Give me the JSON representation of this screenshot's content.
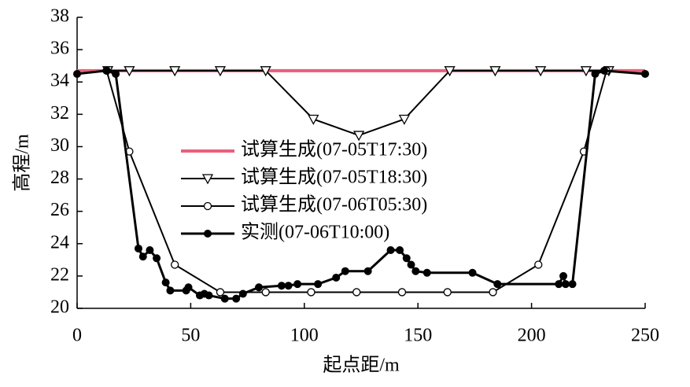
{
  "chart_data": {
    "type": "line",
    "xlabel": "起点距/m",
    "ylabel": "高程/m",
    "xlim": [
      0,
      250
    ],
    "xticks": [
      0,
      50,
      100,
      150,
      200,
      250
    ],
    "ylim": [
      20,
      38
    ],
    "yticks": [
      20,
      22,
      24,
      26,
      28,
      30,
      32,
      34,
      36,
      38
    ],
    "legend": "center",
    "series": [
      {
        "name": "试算生成(07-05T17:30)",
        "color": "#e8607a",
        "marker": "none",
        "x": [
          0,
          250
        ],
        "values": [
          34.7,
          34.7
        ]
      },
      {
        "name": "试算生成(07-05T18:30)",
        "color": "#000000",
        "marker": "triangle-down",
        "x": [
          13.5,
          23,
          43,
          63,
          83,
          104,
          124,
          144,
          164,
          184,
          204,
          224,
          234
        ],
        "values": [
          34.7,
          34.7,
          34.7,
          34.7,
          34.7,
          31.7,
          30.7,
          31.7,
          34.7,
          34.7,
          34.7,
          34.7,
          34.7
        ]
      },
      {
        "name": "试算生成(07-06T05:30)",
        "color": "#000000",
        "marker": "open-circle",
        "x": [
          13,
          23,
          43,
          63,
          83,
          103,
          123,
          143,
          163,
          183,
          203,
          223,
          233
        ],
        "values": [
          34.7,
          29.7,
          22.7,
          21,
          21,
          21,
          21,
          21,
          21,
          21,
          22.7,
          29.7,
          34.7
        ]
      },
      {
        "name": "实测(07-06T10:00)",
        "color": "#000000",
        "marker": "filled-circle",
        "x": [
          0,
          13,
          17,
          27,
          29,
          32,
          35,
          39,
          41,
          48,
          49,
          54,
          56,
          58,
          65,
          70,
          73,
          80,
          90,
          93,
          97,
          106,
          114,
          118,
          128,
          138,
          142,
          145,
          147,
          149,
          154,
          174,
          185,
          212,
          214,
          215,
          218,
          228,
          232,
          250
        ],
        "values": [
          34.5,
          34.7,
          34.5,
          23.7,
          23.2,
          23.6,
          23.1,
          21.6,
          21.1,
          21.1,
          21.3,
          20.8,
          20.9,
          20.8,
          20.6,
          20.6,
          20.9,
          21.3,
          21.4,
          21.4,
          21.5,
          21.5,
          21.9,
          22.3,
          22.3,
          23.6,
          23.6,
          23.1,
          22.7,
          22.3,
          22.2,
          22.2,
          21.5,
          21.5,
          22.0,
          21.5,
          21.5,
          34.5,
          34.7,
          34.5
        ]
      }
    ]
  }
}
